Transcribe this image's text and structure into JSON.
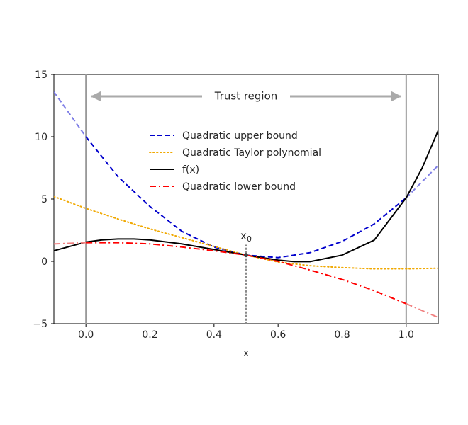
{
  "chart_data": {
    "type": "line",
    "title": "",
    "xlabel": "x",
    "ylabel": "",
    "xlim": [
      -0.1,
      1.1
    ],
    "ylim": [
      -5,
      15
    ],
    "xticks": [
      0.0,
      0.2,
      0.4,
      0.6,
      0.8,
      1.0
    ],
    "xtick_labels": [
      "0.0",
      "0.2",
      "0.4",
      "0.6",
      "0.8",
      "1.0"
    ],
    "yticks": [
      -5,
      0,
      5,
      10,
      15
    ],
    "ytick_labels": [
      "−5",
      "0",
      "5",
      "10",
      "15"
    ],
    "grid": false,
    "legend_position": "upper-center",
    "trust_region": {
      "label": "Trust region",
      "bounds": [
        0.0,
        1.0
      ],
      "color": "#aaaaaa"
    },
    "x0": {
      "label": "x",
      "subscript": "0",
      "x": 0.5,
      "y": 0.5,
      "line_style": "dotted",
      "color": "#888888"
    },
    "series": [
      {
        "name": "Quadratic upper bound",
        "style": "dashed",
        "color": "#0000cc",
        "faded_color": "#7f7fe6",
        "x": [
          -0.1,
          0.0,
          0.1,
          0.2,
          0.3,
          0.4,
          0.5,
          0.6,
          0.7,
          0.8,
          0.9,
          1.0,
          1.1
        ],
        "y": [
          13.6,
          10.0,
          6.8,
          4.4,
          2.4,
          1.15,
          0.5,
          0.3,
          0.7,
          1.6,
          3.0,
          5.1,
          7.7
        ]
      },
      {
        "name": "Quadratic Taylor polynomial",
        "style": "dotted",
        "color": "#f0a800",
        "x": [
          -0.1,
          0.0,
          0.1,
          0.2,
          0.3,
          0.4,
          0.5,
          0.6,
          0.7,
          0.8,
          0.9,
          1.0,
          1.1
        ],
        "y": [
          5.2,
          4.25,
          3.4,
          2.6,
          1.9,
          1.2,
          0.5,
          -0.05,
          -0.35,
          -0.5,
          -0.6,
          -0.6,
          -0.55
        ]
      },
      {
        "name": "f(x)",
        "style": "solid",
        "color": "#000000",
        "x": [
          -0.1,
          0.0,
          0.05,
          0.1,
          0.15,
          0.2,
          0.3,
          0.4,
          0.5,
          0.6,
          0.65,
          0.7,
          0.8,
          0.9,
          1.0,
          1.05,
          1.1
        ],
        "y": [
          0.85,
          1.55,
          1.72,
          1.8,
          1.8,
          1.72,
          1.4,
          0.95,
          0.5,
          0.1,
          -0.02,
          -0.02,
          0.5,
          1.7,
          5.1,
          7.5,
          10.5
        ]
      },
      {
        "name": "Quadratic lower bound",
        "style": "dashdot",
        "color": "#ff0000",
        "faded_color": "#f08080",
        "x": [
          -0.1,
          0.0,
          0.1,
          0.2,
          0.3,
          0.4,
          0.5,
          0.6,
          0.7,
          0.8,
          0.9,
          1.0,
          1.1
        ],
        "y": [
          1.4,
          1.5,
          1.5,
          1.4,
          1.15,
          0.85,
          0.5,
          0.0,
          -0.7,
          -1.45,
          -2.35,
          -3.4,
          -4.5
        ]
      }
    ]
  }
}
